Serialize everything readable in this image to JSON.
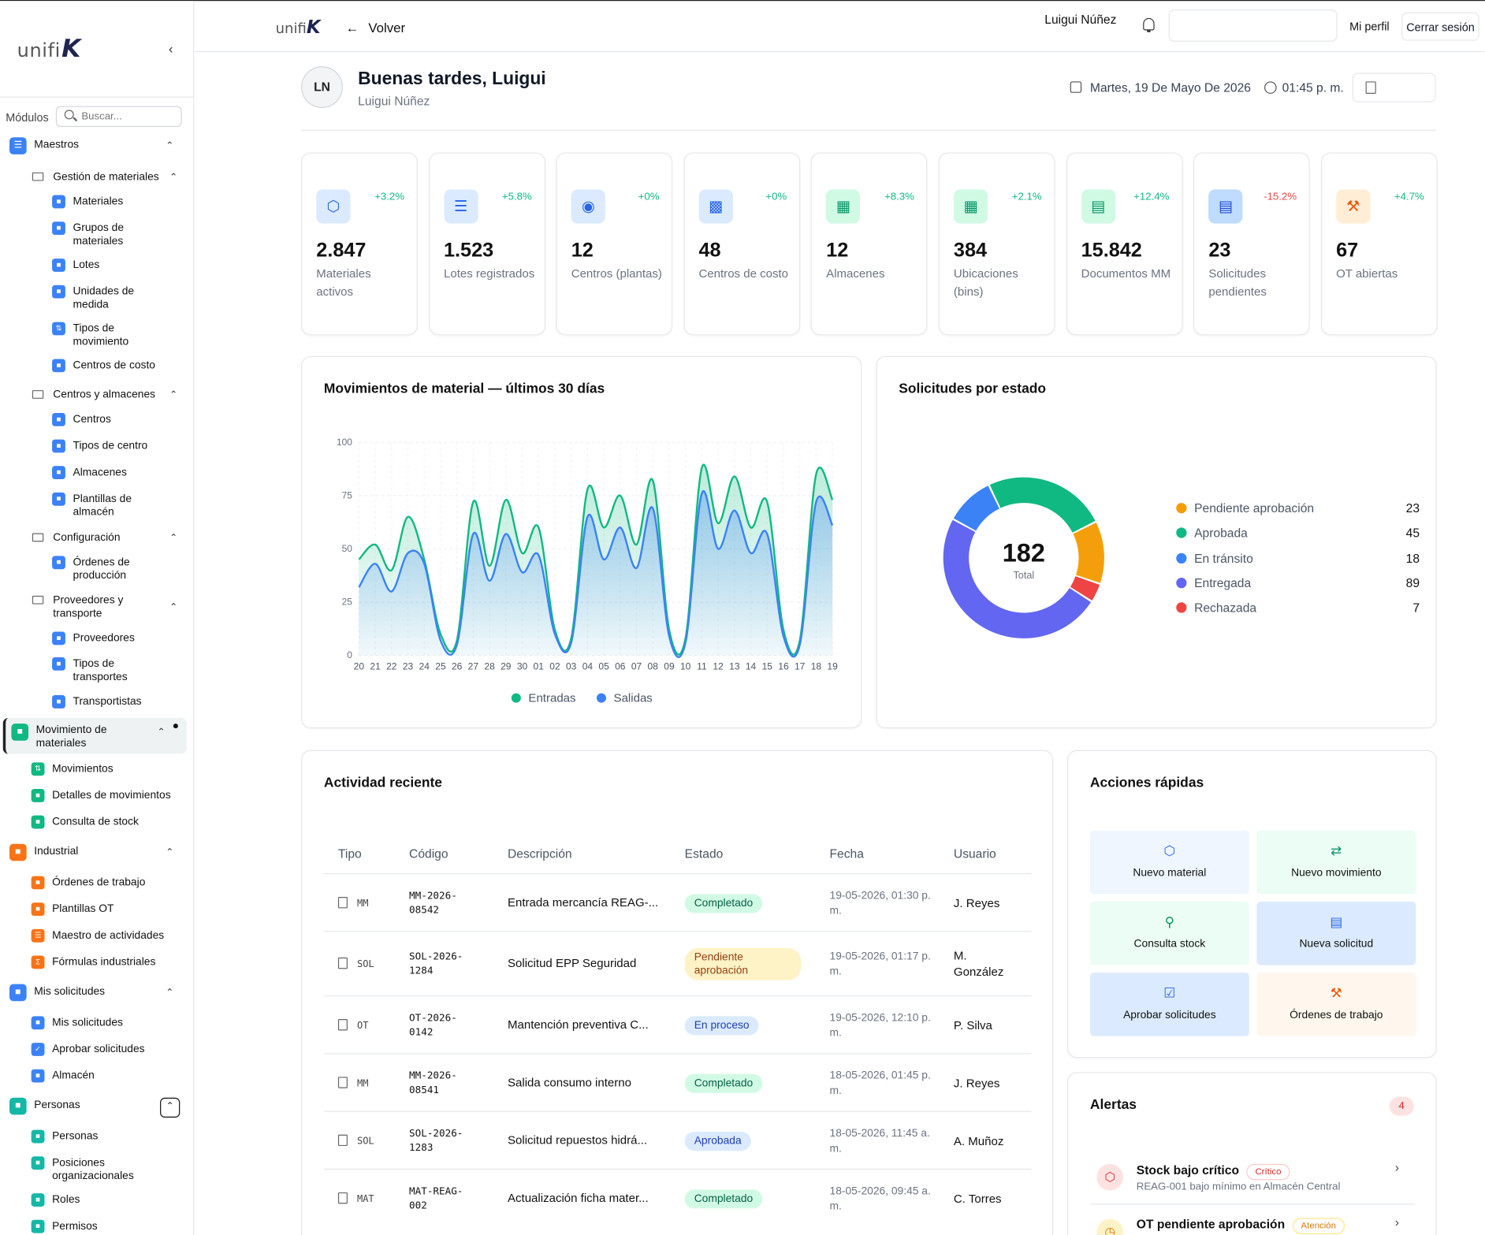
{
  "brand": {
    "text": "unifi",
    "mark": "K"
  },
  "sidebar": {
    "modules_label": "Módulos",
    "search_placeholder": "Buscar...",
    "maestros": "Maestros",
    "gestion": "Gestión de materiales",
    "gestion_items": [
      "Materiales",
      "Grupos de materiales",
      "Lotes",
      "Unidades de medida",
      "Tipos de movimiento",
      "Centros de costo"
    ],
    "centros_alm": "Centros y almacenes",
    "centros_items": [
      "Centros",
      "Tipos de centro",
      "Almacenes",
      "Plantillas de almacén"
    ],
    "configuracion": "Configuración",
    "config_items": [
      "Órdenes de producción"
    ],
    "proveedores": "Proveedores y transporte",
    "prov_items": [
      "Proveedores",
      "Tipos de transportes",
      "Transportistas"
    ],
    "movimiento": "Movimiento de materiales",
    "mov_items": [
      "Movimientos",
      "Detalles de movimientos",
      "Consulta de stock"
    ],
    "industrial": "Industrial",
    "ind_items": [
      "Órdenes de trabajo",
      "Plantillas OT",
      "Maestro de actividades",
      "Fórmulas industriales"
    ],
    "solicitudes": "Mis solicitudes",
    "sol_items": [
      "Mis solicitudes",
      "Aprobar solicitudes",
      "Almacén"
    ],
    "personas": "Personas",
    "per_items": [
      "Personas",
      "Posiciones organizacionales",
      "Roles",
      "Permisos"
    ]
  },
  "topbar": {
    "back": "Volver",
    "user": "Luigui Núñez",
    "profile": "Mi perfil",
    "logout": "Cerrar sesión"
  },
  "greeting": {
    "initials": "LN",
    "title": "Buenas tardes, Luigui",
    "name": "Luigui Núñez",
    "date": "Martes, 19 De Mayo De 2026",
    "time": "01:45 p. m."
  },
  "stats": [
    {
      "value": "2.847",
      "label": "Materiales activos",
      "trend": "+3.2%",
      "icon": "cube-icon"
    },
    {
      "value": "1.523",
      "label": "Lotes registrados",
      "trend": "+5.8%",
      "icon": "layers-icon"
    },
    {
      "value": "12",
      "label": "Centros (plantas)",
      "trend": "+0%",
      "icon": "map-pin-icon"
    },
    {
      "value": "48",
      "label": "Centros de costo",
      "trend": "+0%",
      "icon": "wallet-icon"
    },
    {
      "value": "12",
      "label": "Almacenes",
      "trend": "+8.3%",
      "icon": "warehouse-icon"
    },
    {
      "value": "384",
      "label": "Ubicaciones (bins)",
      "trend": "+2.1%",
      "icon": "grid-icon"
    },
    {
      "value": "15.842",
      "label": "Documentos MM",
      "trend": "+12.4%",
      "icon": "document-icon"
    },
    {
      "value": "23",
      "label": "Solicitudes pendientes",
      "trend": "-15.2%",
      "icon": "clipboard-icon"
    },
    {
      "value": "67",
      "label": "OT abiertas",
      "trend": "+4.7%",
      "icon": "wrench-icon"
    }
  ],
  "chart_data": [
    {
      "type": "area",
      "title": "Movimientos de material — últimos 30 días",
      "x": [
        "20",
        "21",
        "22",
        "23",
        "24",
        "25",
        "26",
        "27",
        "28",
        "29",
        "30",
        "01",
        "02",
        "03",
        "04",
        "05",
        "06",
        "07",
        "08",
        "09",
        "10",
        "11",
        "12",
        "13",
        "14",
        "15",
        "16",
        "17",
        "18",
        "19"
      ],
      "ylim": [
        0,
        100
      ],
      "yticks": [
        0,
        25,
        50,
        75,
        100
      ],
      "series": [
        {
          "name": "Entradas",
          "color": "#10b981",
          "values": [
            45,
            52,
            40,
            65,
            45,
            10,
            7,
            72,
            42,
            73,
            48,
            60,
            12,
            8,
            78,
            60,
            75,
            52,
            82,
            12,
            8,
            88,
            62,
            84,
            60,
            72,
            12,
            7,
            85,
            73
          ]
        },
        {
          "name": "Salidas",
          "color": "#3b82f6",
          "values": [
            32,
            43,
            30,
            48,
            43,
            7,
            5,
            57,
            35,
            57,
            39,
            47,
            10,
            6,
            65,
            45,
            60,
            41,
            69,
            9,
            6,
            76,
            50,
            68,
            48,
            57,
            9,
            5,
            72,
            61
          ]
        }
      ]
    },
    {
      "type": "pie",
      "title": "Solicitudes por estado",
      "total": "182",
      "total_label": "Total",
      "slices": [
        {
          "name": "Pendiente aprobación",
          "value": 23,
          "color": "#f59e0b"
        },
        {
          "name": "Aprobada",
          "value": 45,
          "color": "#10b981"
        },
        {
          "name": "En tránsito",
          "value": 18,
          "color": "#3b82f6"
        },
        {
          "name": "Entregada",
          "value": 89,
          "color": "#6366f1"
        },
        {
          "name": "Rechazada",
          "value": 7,
          "color": "#ef4444"
        }
      ]
    }
  ],
  "activity": {
    "title": "Actividad reciente",
    "headers": [
      "Tipo",
      "Código",
      "Descripción",
      "Estado",
      "Fecha",
      "Usuario"
    ],
    "rows": [
      {
        "tipo": "MM",
        "codigo": "MM-2026-\n08542",
        "desc": "Entrada mercancía REAG-...",
        "estado": "Completado",
        "fecha": "19-05-2026, 01:30 p. m.",
        "usuario": "J. Reyes"
      },
      {
        "tipo": "SOL",
        "codigo": "SOL-2026-\n1284",
        "desc": "Solicitud EPP Seguridad",
        "estado": "Pendiente aprobación",
        "fecha": "19-05-2026, 01:17 p. m.",
        "usuario": "M. González"
      },
      {
        "tipo": "OT",
        "codigo": "OT-2026-\n0142",
        "desc": "Mantención preventiva C...",
        "estado": "En proceso",
        "fecha": "19-05-2026, 12:10 p. m.",
        "usuario": "P. Silva"
      },
      {
        "tipo": "MM",
        "codigo": "MM-2026-\n08541",
        "desc": "Salida consumo interno",
        "estado": "Completado",
        "fecha": "18-05-2026, 01:45 p. m.",
        "usuario": "J. Reyes"
      },
      {
        "tipo": "SOL",
        "codigo": "SOL-2026-\n1283",
        "desc": "Solicitud repuestos hidrá...",
        "estado": "Aprobada",
        "fecha": "18-05-2026, 11:45 a. m.",
        "usuario": "A. Muñoz"
      },
      {
        "tipo": "MAT",
        "codigo": "MAT-REAG-\n002",
        "desc": "Actualización ficha mater...",
        "estado": "Completado",
        "fecha": "18-05-2026, 09:45 a. m.",
        "usuario": "C. Torres"
      }
    ]
  },
  "quick": {
    "title": "Acciones rápidas",
    "items": [
      "Nuevo material",
      "Nuevo movimiento",
      "Consulta stock",
      "Nueva solicitud",
      "Aprobar solicitudes",
      "Órdenes de trabajo"
    ]
  },
  "alerts": {
    "title": "Alertas",
    "count": "4",
    "items": [
      {
        "title": "Stock bajo crítico",
        "badge": "Crítico",
        "sub": "REAG-001 bajo mínimo en Almacén Central"
      },
      {
        "title": "OT pendiente aprobación",
        "badge": "Atención",
        "sub": ""
      }
    ]
  }
}
